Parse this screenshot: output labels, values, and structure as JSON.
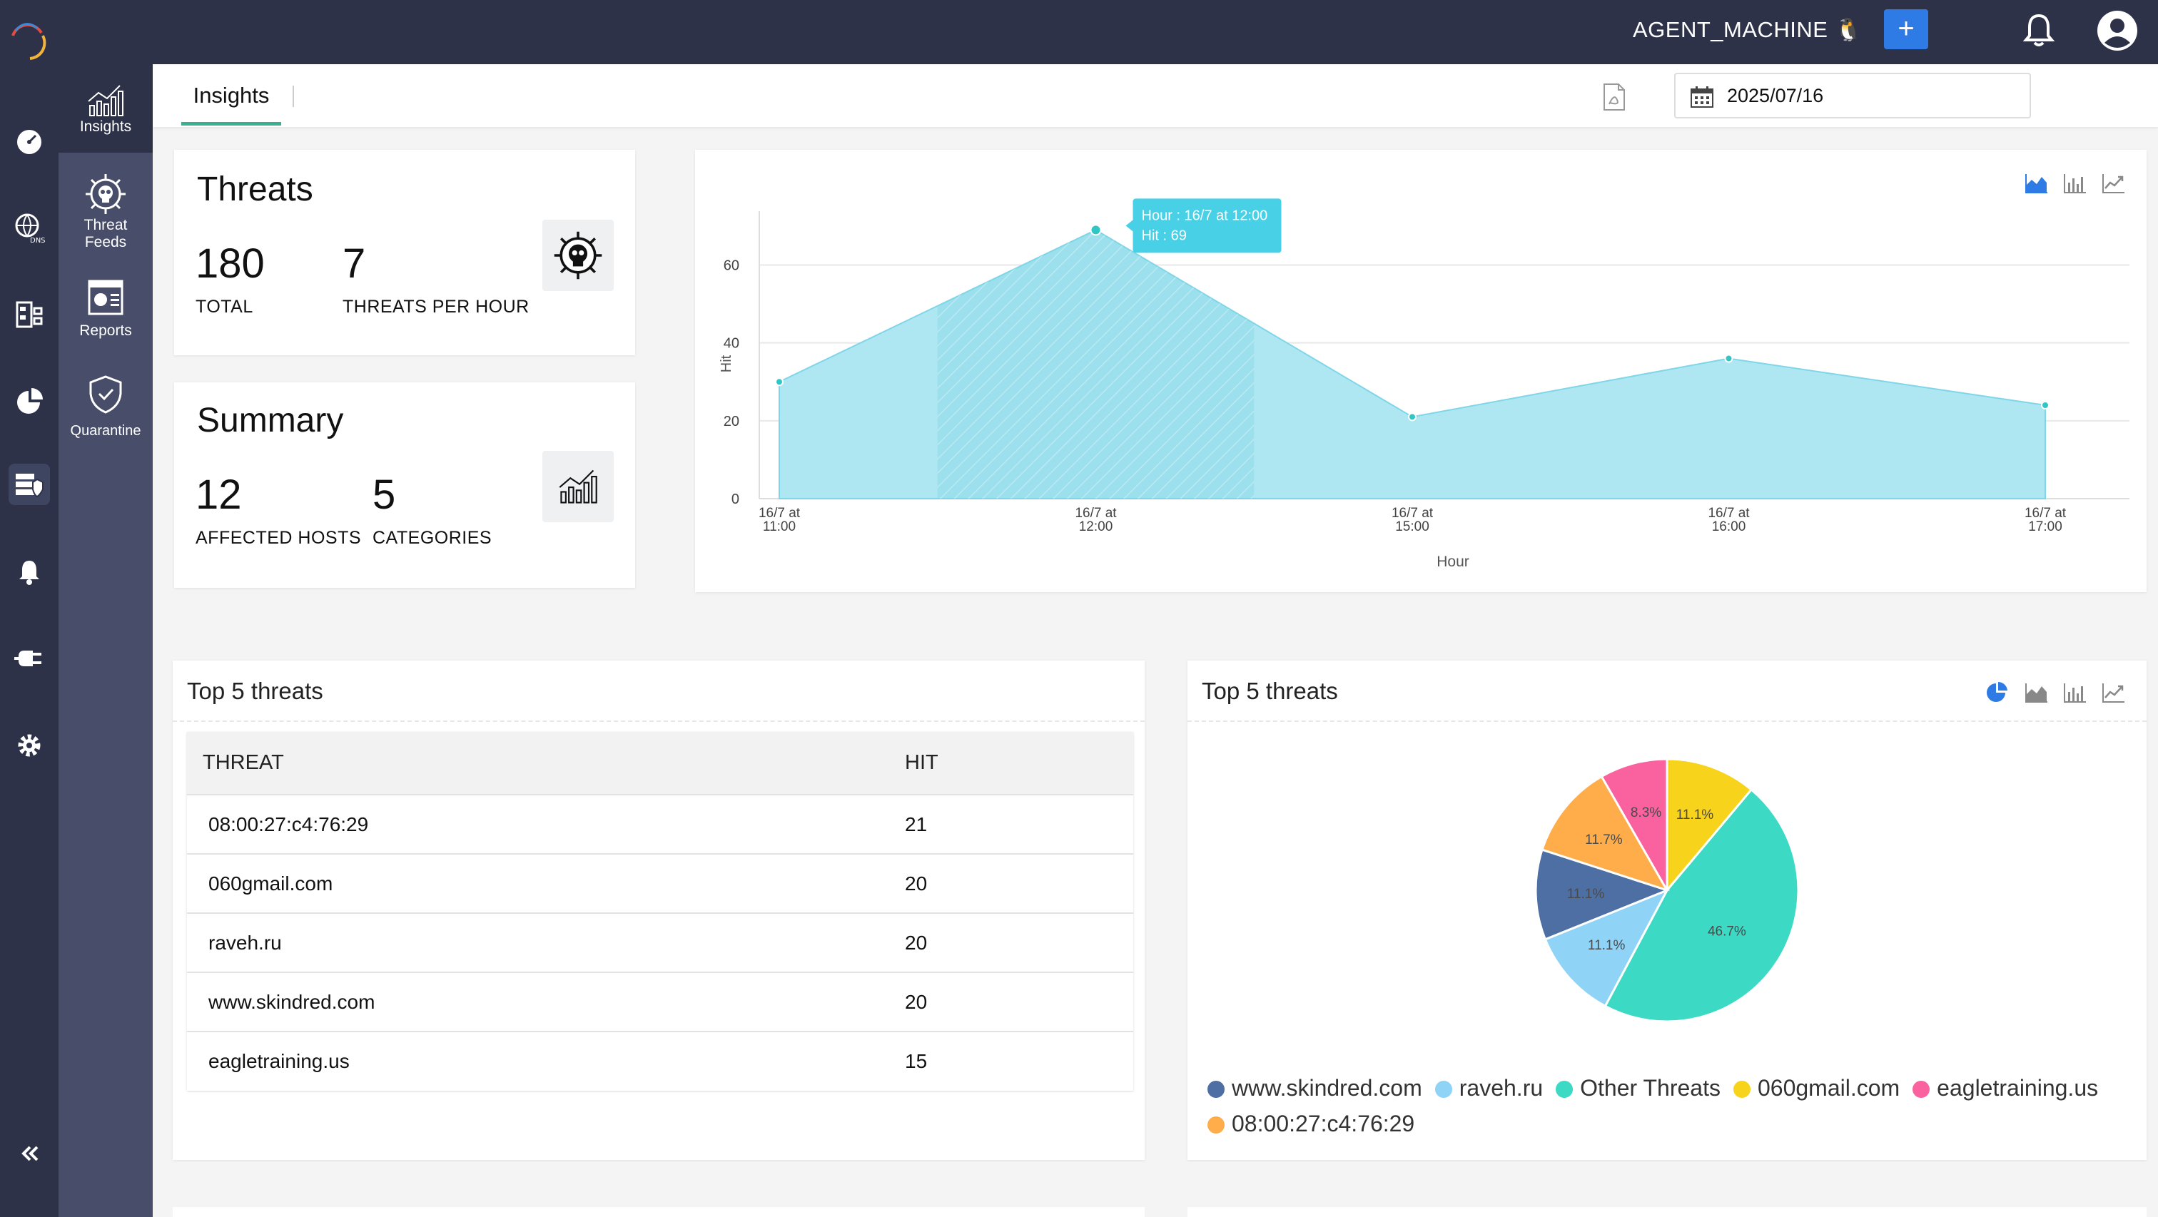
{
  "header": {
    "agent_name": "AGENT_MACHINE 🐧",
    "add_label": "+"
  },
  "subnav": {
    "items": [
      {
        "label": "Insights",
        "icon": "insights-icon",
        "active": true
      },
      {
        "label_line1": "Threat",
        "label_line2": "Feeds",
        "icon": "biohazard-skull-icon"
      },
      {
        "label": "Reports",
        "icon": "report-icon"
      },
      {
        "label": "Quarantine",
        "icon": "shield-check-icon"
      }
    ]
  },
  "rail": {
    "items": [
      "dashboard-gauge-icon",
      "dns-globe-icon",
      "policy-list-icon",
      "pie-analytics-icon",
      "threat-server-icon",
      "alerts-bell-icon",
      "integrations-plug-icon",
      "settings-gear-icon",
      "collapse-icon"
    ]
  },
  "tabbar": {
    "tab_label": "Insights",
    "date_value": "2025/07/16"
  },
  "threats_card": {
    "title": "Threats",
    "total_value": "180",
    "total_label": "TOTAL",
    "per_hour_value": "7",
    "per_hour_label": "THREATS PER HOUR"
  },
  "summary_card": {
    "title": "Summary",
    "hosts_value": "12",
    "hosts_label": "AFFECTED HOSTS",
    "categories_value": "5",
    "categories_label": "CATEGORIES"
  },
  "top_table": {
    "title": "Top 5 threats",
    "headers": {
      "threat": "THREAT",
      "hit": "HIT"
    },
    "rows": [
      {
        "threat": "08:00:27:c4:76:29",
        "hit": "21"
      },
      {
        "threat": "060gmail.com",
        "hit": "20"
      },
      {
        "threat": "raveh.ru",
        "hit": "20"
      },
      {
        "threat": "www.skindred.com",
        "hit": "20"
      },
      {
        "threat": "eagletraining.us",
        "hit": "15"
      }
    ]
  },
  "pie_card": {
    "title": "Top 5 threats"
  },
  "colors": {
    "area_fill": "#aee6f1",
    "area_line": "#7fd6e8",
    "point": "#2fc6c6",
    "tooltip": "#48d0e6"
  },
  "chart_data": [
    {
      "type": "area",
      "xlabel": "Hour",
      "ylabel": "Hit",
      "x": [
        "16/7 at 11:00",
        "16/7 at 12:00",
        "16/7 at 15:00",
        "16/7 at 16:00",
        "16/7 at 17:00"
      ],
      "values": [
        30,
        69,
        21,
        36,
        24
      ],
      "ylim": [
        0,
        72
      ],
      "yticks": [
        0,
        20,
        40,
        60
      ],
      "grid": true,
      "highlighted_index": 1,
      "tooltip": {
        "line1": "Hour : 16/7 at 12:00",
        "line2": "Hit : 69"
      }
    },
    {
      "type": "pie",
      "slices": [
        {
          "label": "08:00:27:c4:76:29",
          "value": 11.7,
          "text": "11.7%",
          "color": "#ffad4a"
        },
        {
          "label": "eagletraining.us",
          "value": 8.3,
          "text": "8.3%",
          "color": "#f9619f"
        },
        {
          "label": "060gmail.com",
          "value": 11.1,
          "text": "11.1%",
          "color": "#f8d31c"
        },
        {
          "label": "Other Threats",
          "value": 46.7,
          "text": "46.7%",
          "color": "#3cd9c5"
        },
        {
          "label": "raveh.ru",
          "value": 11.1,
          "text": "11.1%",
          "color": "#8fd3f7"
        },
        {
          "label": "www.skindred.com",
          "value": 11.1,
          "text": "11.1%",
          "color": "#4d6fa3"
        }
      ],
      "legend": [
        "www.skindred.com",
        "raveh.ru",
        "Other Threats",
        "060gmail.com",
        "eagletraining.us",
        "08:00:27:c4:76:29"
      ],
      "legend_placement": "bottom"
    }
  ]
}
